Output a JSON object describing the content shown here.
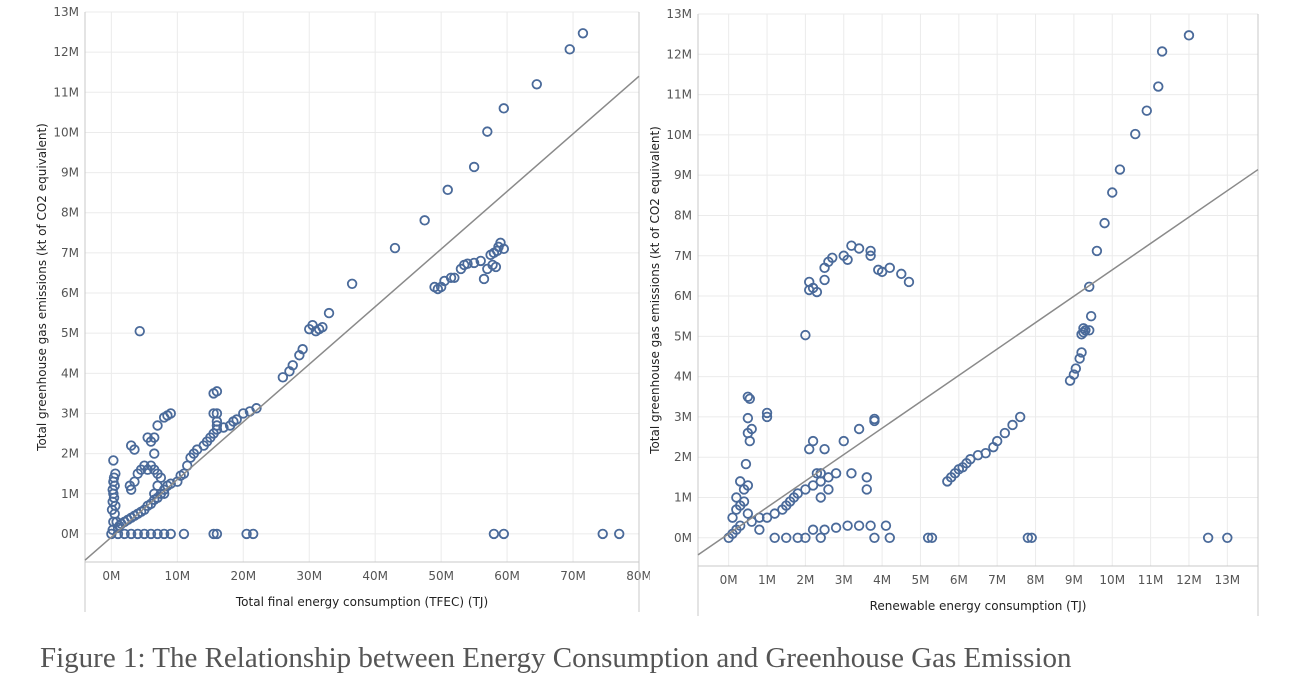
{
  "caption": "Figure 1: The Relationship between Energy Consumption and Greenhouse Gas Emission",
  "chart_data": [
    {
      "type": "scatter",
      "xlabel": "Total final energy consumption (TFEC) (TJ)",
      "ylabel": "Total greenhouse gas emissions (kt of CO2 equivalent)",
      "xlim": [
        -4,
        80
      ],
      "ylim": [
        -0.7,
        13
      ],
      "x_ticks": [
        0,
        10,
        20,
        30,
        40,
        50,
        60,
        70,
        80
      ],
      "y_ticks": [
        0,
        1,
        2,
        3,
        4,
        5,
        6,
        7,
        8,
        9,
        10,
        11,
        12,
        13
      ],
      "x_tick_labels": [
        "0M",
        "10M",
        "20M",
        "30M",
        "40M",
        "50M",
        "60M",
        "70M",
        "80M"
      ],
      "y_tick_labels": [
        "0M",
        "1M",
        "2M",
        "3M",
        "4M",
        "5M",
        "6M",
        "7M",
        "8M",
        "9M",
        "10M",
        "11M",
        "12M",
        "13M"
      ],
      "grid": true,
      "marker": "hollow-circle",
      "color": "#4a6a9a",
      "trend_color": "#8a8a8a",
      "trend_line": {
        "intercept": -0.08,
        "slope": 0.1435
      },
      "points": [
        [
          0,
          0
        ],
        [
          0.2,
          0.1
        ],
        [
          0.3,
          0.3
        ],
        [
          0.5,
          0.5
        ],
        [
          0.1,
          0.6
        ],
        [
          0.2,
          0.8
        ],
        [
          0.4,
          0.9
        ],
        [
          0.3,
          1.0
        ],
        [
          0.2,
          1.1
        ],
        [
          0.5,
          1.2
        ],
        [
          0.3,
          1.3
        ],
        [
          0.4,
          1.4
        ],
        [
          0.6,
          1.5
        ],
        [
          0.3,
          1.83
        ],
        [
          0.6,
          0.7
        ],
        [
          0.8,
          0.3
        ],
        [
          1,
          0.15
        ],
        [
          1.2,
          0.2
        ],
        [
          1.5,
          0.25
        ],
        [
          2,
          0.3
        ],
        [
          2.5,
          0.35
        ],
        [
          3,
          0.4
        ],
        [
          3.5,
          0.45
        ],
        [
          4,
          0.5
        ],
        [
          4.5,
          0.55
        ],
        [
          5,
          0.6
        ],
        [
          5.5,
          0.7
        ],
        [
          6,
          0.75
        ],
        [
          6.5,
          0.85
        ],
        [
          7,
          0.9
        ],
        [
          7.5,
          1.0
        ],
        [
          8,
          1.1
        ],
        [
          8.5,
          1.2
        ],
        [
          9,
          1.25
        ],
        [
          10,
          1.3
        ],
        [
          10.5,
          1.45
        ],
        [
          11,
          1.5
        ],
        [
          11.5,
          1.7
        ],
        [
          12,
          1.9
        ],
        [
          12.5,
          2.0
        ],
        [
          13,
          2.1
        ],
        [
          14,
          2.2
        ],
        [
          14.5,
          2.3
        ],
        [
          15,
          2.4
        ],
        [
          15.5,
          2.5
        ],
        [
          16,
          2.6
        ],
        [
          17,
          2.65
        ],
        [
          18,
          2.7
        ],
        [
          18.5,
          2.8
        ],
        [
          19,
          2.85
        ],
        [
          20,
          3.0
        ],
        [
          21,
          3.05
        ],
        [
          22,
          3.13
        ],
        [
          15.5,
          3.5
        ],
        [
          16,
          3.55
        ],
        [
          15.5,
          3.0
        ],
        [
          16,
          3.0
        ],
        [
          16,
          2.8
        ],
        [
          16,
          2.7
        ],
        [
          2.8,
          1.2
        ],
        [
          3,
          1.1
        ],
        [
          3.5,
          1.3
        ],
        [
          4,
          1.5
        ],
        [
          4.5,
          1.6
        ],
        [
          5,
          1.7
        ],
        [
          5.5,
          1.6
        ],
        [
          6,
          1.7
        ],
        [
          6.5,
          1.6
        ],
        [
          7,
          1.5
        ],
        [
          6.5,
          1.0
        ],
        [
          7,
          1.2
        ],
        [
          7.5,
          1.4
        ],
        [
          8,
          1.0
        ],
        [
          3,
          2.2
        ],
        [
          3.5,
          2.1
        ],
        [
          5.5,
          2.4
        ],
        [
          6,
          2.3
        ],
        [
          6.5,
          2.4
        ],
        [
          6.5,
          2.0
        ],
        [
          7,
          2.7
        ],
        [
          8,
          2.9
        ],
        [
          8.5,
          2.95
        ],
        [
          9,
          3.0
        ],
        [
          4.3,
          5.05
        ],
        [
          1,
          0
        ],
        [
          2,
          0
        ],
        [
          3,
          0
        ],
        [
          4,
          0
        ],
        [
          5,
          0
        ],
        [
          6,
          0
        ],
        [
          7,
          0
        ],
        [
          8,
          0
        ],
        [
          9,
          0
        ],
        [
          11,
          0
        ],
        [
          15.5,
          0
        ],
        [
          16,
          0
        ],
        [
          20.5,
          0
        ],
        [
          21.5,
          0
        ],
        [
          26,
          3.9
        ],
        [
          27,
          4.05
        ],
        [
          27.5,
          4.2
        ],
        [
          28.5,
          4.45
        ],
        [
          29,
          4.6
        ],
        [
          30,
          5.1
        ],
        [
          30.5,
          5.2
        ],
        [
          31,
          5.05
        ],
        [
          31.5,
          5.1
        ],
        [
          32,
          5.15
        ],
        [
          33,
          5.5
        ],
        [
          36.5,
          6.23
        ],
        [
          43,
          7.12
        ],
        [
          47.5,
          7.81
        ],
        [
          49,
          6.15
        ],
        [
          49.5,
          6.1
        ],
        [
          50,
          6.15
        ],
        [
          50.5,
          6.3
        ],
        [
          51.5,
          6.38
        ],
        [
          52,
          6.38
        ],
        [
          53,
          6.6
        ],
        [
          53.5,
          6.7
        ],
        [
          54,
          6.73
        ],
        [
          55,
          6.75
        ],
        [
          56,
          6.8
        ],
        [
          56.5,
          6.35
        ],
        [
          57,
          6.6
        ],
        [
          57.5,
          6.95
        ],
        [
          57.8,
          6.7
        ],
        [
          58,
          7.0
        ],
        [
          58.3,
          6.65
        ],
        [
          58.5,
          7.05
        ],
        [
          58.7,
          7.15
        ],
        [
          59,
          7.25
        ],
        [
          59.5,
          7.1
        ],
        [
          51,
          8.57
        ],
        [
          55,
          9.14
        ],
        [
          57,
          10.02
        ],
        [
          59.5,
          10.6
        ],
        [
          64.5,
          11.2
        ],
        [
          69.5,
          12.07
        ],
        [
          71.5,
          12.47
        ],
        [
          58,
          0
        ],
        [
          59.5,
          0
        ],
        [
          74.5,
          0
        ],
        [
          77,
          0
        ]
      ]
    },
    {
      "type": "scatter",
      "xlabel": "Renewable energy consumption (TJ)",
      "ylabel": "Total greenhouse gas emissions (kt of CO2 equivalent)",
      "xlim": [
        -0.8,
        13.8
      ],
      "ylim": [
        -0.7,
        13
      ],
      "x_ticks": [
        0,
        1,
        2,
        3,
        4,
        5,
        6,
        7,
        8,
        9,
        10,
        11,
        12,
        13
      ],
      "y_ticks": [
        0,
        1,
        2,
        3,
        4,
        5,
        6,
        7,
        8,
        9,
        10,
        11,
        12,
        13
      ],
      "x_tick_labels": [
        "0M",
        "1M",
        "2M",
        "3M",
        "4M",
        "5M",
        "6M",
        "7M",
        "8M",
        "9M",
        "10M",
        "11M",
        "12M",
        "13M"
      ],
      "y_tick_labels": [
        "0M",
        "1M",
        "2M",
        "3M",
        "4M",
        "5M",
        "6M",
        "7M",
        "8M",
        "9M",
        "10M",
        "11M",
        "12M",
        "13M"
      ],
      "grid": true,
      "marker": "hollow-circle",
      "color": "#4a6a9a",
      "trend_color": "#8a8a8a",
      "trend_line": {
        "intercept": 0.1,
        "slope": 0.655
      },
      "points": [
        [
          0,
          0
        ],
        [
          0.1,
          0.1
        ],
        [
          0.2,
          0.2
        ],
        [
          0.3,
          0.3
        ],
        [
          0.1,
          0.5
        ],
        [
          0.2,
          0.7
        ],
        [
          0.3,
          0.8
        ],
        [
          0.4,
          0.9
        ],
        [
          0.2,
          1.0
        ],
        [
          0.4,
          1.2
        ],
        [
          0.5,
          1.3
        ],
        [
          0.3,
          1.4
        ],
        [
          0.45,
          1.83
        ],
        [
          0.5,
          0.6
        ],
        [
          0.6,
          0.4
        ],
        [
          0.8,
          0.2
        ],
        [
          0.5,
          2.6
        ],
        [
          0.55,
          2.4
        ],
        [
          0.6,
          2.7
        ],
        [
          0.5,
          2.97
        ],
        [
          0.5,
          3.5
        ],
        [
          0.55,
          3.45
        ],
        [
          1,
          3.1
        ],
        [
          1,
          3.0
        ],
        [
          0.8,
          0.5
        ],
        [
          1,
          0.5
        ],
        [
          1.2,
          0.6
        ],
        [
          1.4,
          0.7
        ],
        [
          1.5,
          0.8
        ],
        [
          1.6,
          0.9
        ],
        [
          1.7,
          1.0
        ],
        [
          1.8,
          1.1
        ],
        [
          2,
          1.2
        ],
        [
          2.2,
          1.3
        ],
        [
          2.4,
          1.4
        ],
        [
          2.6,
          1.5
        ],
        [
          2.1,
          2.2
        ],
        [
          2.2,
          2.4
        ],
        [
          2.3,
          1.6
        ],
        [
          2.4,
          1.6
        ],
        [
          2.5,
          2.2
        ],
        [
          3,
          2.4
        ],
        [
          3.2,
          1.6
        ],
        [
          3.4,
          2.7
        ],
        [
          3.8,
          2.9
        ],
        [
          3.8,
          2.95
        ],
        [
          3.6,
          1.5
        ],
        [
          3.6,
          1.2
        ],
        [
          2.8,
          1.6
        ],
        [
          2.4,
          1.0
        ],
        [
          2.6,
          1.2
        ],
        [
          2.2,
          0.2
        ],
        [
          2.5,
          0.2
        ],
        [
          2.8,
          0.25
        ],
        [
          3.1,
          0.3
        ],
        [
          3.4,
          0.3
        ],
        [
          3.7,
          0.3
        ],
        [
          4.1,
          0.3
        ],
        [
          1.2,
          0
        ],
        [
          1.5,
          0
        ],
        [
          1.8,
          0
        ],
        [
          2,
          0
        ],
        [
          2.4,
          0
        ],
        [
          3.8,
          0
        ],
        [
          4.2,
          0
        ],
        [
          5.2,
          0
        ],
        [
          5.3,
          0
        ],
        [
          7.8,
          0
        ],
        [
          7.9,
          0
        ],
        [
          2,
          5.03
        ],
        [
          2.1,
          6.15
        ],
        [
          2.2,
          6.2
        ],
        [
          2.3,
          6.1
        ],
        [
          2.1,
          6.35
        ],
        [
          2.5,
          6.4
        ],
        [
          2.5,
          6.7
        ],
        [
          2.6,
          6.85
        ],
        [
          2.7,
          6.95
        ],
        [
          3,
          7.0
        ],
        [
          3.1,
          6.9
        ],
        [
          3.2,
          7.25
        ],
        [
          3.4,
          7.18
        ],
        [
          3.7,
          7.12
        ],
        [
          3.7,
          7.0
        ],
        [
          3.9,
          6.65
        ],
        [
          4,
          6.6
        ],
        [
          4.2,
          6.7
        ],
        [
          4.5,
          6.55
        ],
        [
          4.7,
          6.35
        ],
        [
          5.7,
          1.4
        ],
        [
          5.8,
          1.5
        ],
        [
          5.9,
          1.6
        ],
        [
          6,
          1.7
        ],
        [
          6.1,
          1.75
        ],
        [
          6.2,
          1.85
        ],
        [
          6.3,
          1.95
        ],
        [
          6.5,
          2.05
        ],
        [
          6.7,
          2.1
        ],
        [
          6.9,
          2.25
        ],
        [
          7,
          2.4
        ],
        [
          7.2,
          2.6
        ],
        [
          7.4,
          2.8
        ],
        [
          7.6,
          3.0
        ],
        [
          8.9,
          3.9
        ],
        [
          9,
          4.05
        ],
        [
          9.05,
          4.2
        ],
        [
          9.15,
          4.45
        ],
        [
          9.2,
          4.6
        ],
        [
          9.25,
          5.1
        ],
        [
          9.3,
          5.15
        ],
        [
          9.2,
          5.05
        ],
        [
          9.25,
          5.2
        ],
        [
          9.4,
          5.15
        ],
        [
          9.45,
          5.5
        ],
        [
          9.4,
          6.23
        ],
        [
          9.6,
          7.12
        ],
        [
          9.8,
          7.81
        ],
        [
          10,
          8.57
        ],
        [
          10.2,
          9.14
        ],
        [
          10.6,
          10.02
        ],
        [
          10.9,
          10.6
        ],
        [
          11.2,
          11.2
        ],
        [
          11.3,
          12.07
        ],
        [
          12,
          12.47
        ],
        [
          12.5,
          0
        ],
        [
          13,
          0
        ]
      ]
    }
  ]
}
